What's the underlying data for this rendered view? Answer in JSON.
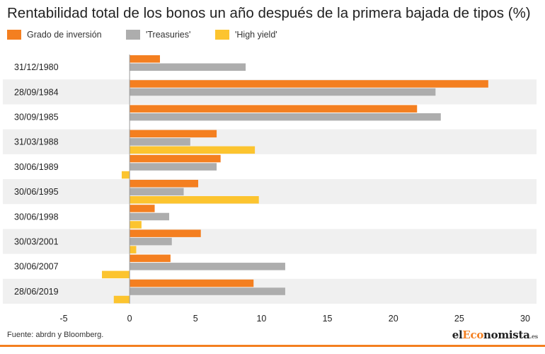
{
  "title": "Rentabilidad total de los bonos un año después de la primera bajada de tipos (%)",
  "source": "Fuente: abrdn y Bloomberg.",
  "logo": {
    "pre": "el",
    "accent": "Eco",
    "post": "nomista",
    "tld": ".es"
  },
  "colors": {
    "grado": "#f47f20",
    "treasuries": "#adadad",
    "high_yield": "#fcc42f",
    "band": "#f0f0f0",
    "text": "#222222",
    "accent_rule": "#f47f20"
  },
  "chart_data": {
    "type": "bar",
    "orientation": "horizontal",
    "title": "Rentabilidad total de los bonos un año después de la primera bajada de tipos (%)",
    "categories": [
      "31/12/1980",
      "28/09/1984",
      "30/09/1985",
      "31/03/1988",
      "30/06/1989",
      "30/06/1995",
      "30/06/1998",
      "30/03/2001",
      "30/06/2007",
      "28/06/2019"
    ],
    "series": [
      {
        "name": "Grado de inversión",
        "color": "#f47f20",
        "values": [
          2.3,
          27.2,
          21.8,
          6.6,
          6.9,
          5.2,
          1.9,
          5.4,
          3.1,
          9.4
        ]
      },
      {
        "name": "'Treasuries'",
        "color": "#adadad",
        "values": [
          8.8,
          23.2,
          23.6,
          4.6,
          6.6,
          4.1,
          3.0,
          3.2,
          11.8,
          11.8
        ]
      },
      {
        "name": "'High yield'",
        "color": "#fcc42f",
        "values": [
          null,
          null,
          null,
          9.5,
          -0.6,
          9.8,
          0.9,
          0.5,
          -2.1,
          -1.2
        ]
      }
    ],
    "xlim": [
      -5,
      30
    ],
    "xticks": [
      "-5",
      "0",
      "5",
      "10",
      "15",
      "20",
      "25",
      "30"
    ],
    "legend_position": "top-left",
    "alternating_bands": true,
    "grid": false
  }
}
